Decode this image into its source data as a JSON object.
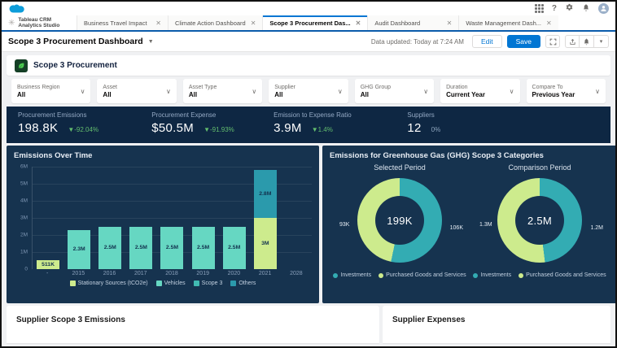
{
  "chrome": {
    "app_name_line1": "Tableau CRM",
    "app_name_line2": "Analytics Studio",
    "tabs": [
      {
        "label": "Business Travel Impact",
        "active": false
      },
      {
        "label": "Climate Action Dashboard",
        "active": false
      },
      {
        "label": "Scope 3 Procurement Das...",
        "active": true
      },
      {
        "label": "Audit Dashboard",
        "active": false
      },
      {
        "label": "Waste Management Dash...",
        "active": false
      }
    ],
    "help_label": "?",
    "title": "Scope 3 Procurement Dashboard",
    "data_updated": "Data updated: Today at 7:24 AM",
    "edit_label": "Edit",
    "save_label": "Save",
    "dropdown_caret": "▾"
  },
  "dashboard": {
    "header_title": "Scope 3 Procurement",
    "filters": [
      {
        "label": "Business Region",
        "value": "All"
      },
      {
        "label": "Asset",
        "value": "All"
      },
      {
        "label": "Asset Type",
        "value": "All"
      },
      {
        "label": "Supplier",
        "value": "All"
      },
      {
        "label": "GHG Group",
        "value": "All"
      },
      {
        "label": "Duration",
        "value": "Current Year"
      },
      {
        "label": "Compare To",
        "value": "Previous Year"
      }
    ],
    "kpis": [
      {
        "label": "Procurement Emissions",
        "value": "198.8K",
        "delta": "▼-92.04%",
        "delta_color": "#63bd6e",
        "basis": "23%"
      },
      {
        "label": "Procurement Expense",
        "value": "$50.5M",
        "delta": "▼-91.93%",
        "delta_color": "#63bd6e",
        "basis": "21%"
      },
      {
        "label": "Emission to Expense Ratio",
        "value": "3.9M",
        "delta": "▼1.4%",
        "delta_color": "#63bd6e",
        "basis": "23%"
      },
      {
        "label": "Suppliers",
        "value": "12",
        "delta": "0%",
        "delta_color": "#8ea5bd",
        "basis": "33%"
      }
    ],
    "bottom": {
      "left_title": "Supplier Scope 3 Emissions",
      "right_title": "Supplier Expenses"
    }
  },
  "chart_data": [
    {
      "type": "bar",
      "title": "Emissions Over Time",
      "stacked": true,
      "categories": [
        "-",
        "2015",
        "2016",
        "2017",
        "2018",
        "2019",
        "2020",
        "2021",
        "2028"
      ],
      "series": [
        {
          "name": "Stationary Sources (tCO2e)",
          "color": "#cdeb8d",
          "values": [
            0.511,
            0,
            0,
            0,
            0,
            0,
            0,
            3,
            0
          ],
          "labels": [
            "511K",
            "",
            "",
            "",
            "",
            "",
            "",
            "3M",
            ""
          ]
        },
        {
          "name": "Vehicles",
          "color": "#66d7c2",
          "values": [
            0,
            2.3,
            2.5,
            2.5,
            2.5,
            2.5,
            2.5,
            0,
            0
          ],
          "labels": [
            "",
            "2.3M",
            "2.5M",
            "2.5M",
            "2.5M",
            "2.5M",
            "2.5M",
            "",
            ""
          ]
        },
        {
          "name": "Scope 3",
          "color": "#41bab2",
          "values": [
            0,
            0,
            0,
            0,
            0,
            0,
            0,
            0,
            0
          ],
          "labels": [
            "",
            "",
            "",
            "",
            "",
            "",
            "",
            "",
            ""
          ]
        },
        {
          "name": "Others",
          "color": "#2b9aac",
          "values": [
            0,
            0,
            0,
            0,
            0,
            0,
            0,
            2.8,
            0
          ],
          "labels": [
            "",
            "",
            "",
            "",
            "",
            "",
            "",
            "2.8M",
            ""
          ]
        }
      ],
      "ylabel": "",
      "xlabel": "",
      "ylim": [
        0,
        6
      ],
      "yticks": [
        "6M",
        "5M",
        "4M",
        "3M",
        "2M",
        "1M",
        "0"
      ],
      "legend_position": "bottom"
    },
    {
      "type": "pie",
      "title": "Emissions for Greenhouse Gas (GHG) Scope 3 Categories",
      "subtitle": "Selected Period",
      "center_value": "199K",
      "slices": [
        {
          "label": "Investments",
          "value": 106,
          "text": "106K",
          "color": "#33acb3"
        },
        {
          "label": "Purchased Goods and Services",
          "value": 93,
          "text": "93K",
          "color": "#cdeb8d"
        }
      ]
    },
    {
      "type": "pie",
      "subtitle": "Comparison Period",
      "center_value": "2.5M",
      "slices": [
        {
          "label": "Investments",
          "value": 1.2,
          "text": "1.2M",
          "color": "#33acb3"
        },
        {
          "label": "Purchased Goods and Services",
          "value": 1.3,
          "text": "1.3M",
          "color": "#cdeb8d"
        }
      ]
    }
  ]
}
